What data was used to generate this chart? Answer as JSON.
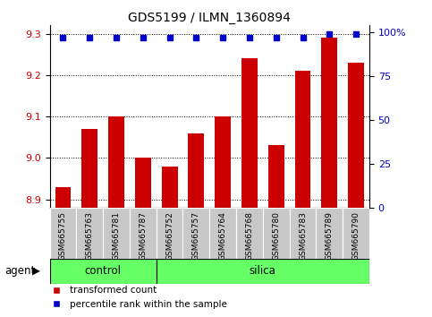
{
  "title": "GDS5199 / ILMN_1360894",
  "samples": [
    "GSM665755",
    "GSM665763",
    "GSM665781",
    "GSM665787",
    "GSM665752",
    "GSM665757",
    "GSM665764",
    "GSM665768",
    "GSM665780",
    "GSM665783",
    "GSM665789",
    "GSM665790"
  ],
  "red_values": [
    8.93,
    9.07,
    9.1,
    9.0,
    8.98,
    9.06,
    9.1,
    9.24,
    9.03,
    9.21,
    9.29,
    9.23
  ],
  "blue_values": [
    97,
    97,
    97,
    97,
    97,
    97,
    97,
    97,
    97,
    97,
    99,
    99
  ],
  "ylim_left": [
    8.88,
    9.32
  ],
  "ylim_right": [
    0,
    104
  ],
  "yticks_left": [
    8.9,
    9.0,
    9.1,
    9.2,
    9.3
  ],
  "yticks_right": [
    0,
    25,
    50,
    75,
    100
  ],
  "ytick_labels_right": [
    "0",
    "25",
    "50",
    "75",
    "100%"
  ],
  "bar_color": "#cc0000",
  "dot_color": "#0000cc",
  "baseline": 8.88,
  "control_count": 4,
  "silica_count": 8,
  "green_color": "#66ff66",
  "gray_color": "#c8c8c8",
  "agent_label": "agent",
  "legend_red": "transformed count",
  "legend_blue": "percentile rank within the sample",
  "title_fontsize": 10,
  "tick_fontsize": 8,
  "label_fontsize": 8.5,
  "sample_fontsize": 6.5
}
